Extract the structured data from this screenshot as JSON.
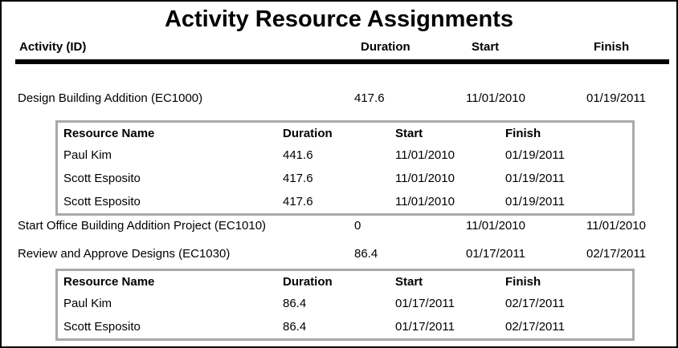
{
  "report": {
    "title": "Activity Resource Assignments",
    "columns": {
      "activity": "Activity (ID)",
      "duration": "Duration",
      "start": "Start",
      "finish": "Finish"
    },
    "resource_columns": {
      "name": "Resource Name",
      "duration": "Duration",
      "start": "Start",
      "finish": "Finish"
    },
    "activities": [
      {
        "name": "Design Building Addition (EC1000)",
        "duration": "417.6",
        "start": "11/01/2010",
        "finish": "01/19/2011",
        "resources": [
          {
            "name": "Paul Kim",
            "duration": "441.6",
            "start": "11/01/2010",
            "finish": "01/19/2011"
          },
          {
            "name": "Scott Esposito",
            "duration": "417.6",
            "start": "11/01/2010",
            "finish": "01/19/2011"
          },
          {
            "name": "Scott Esposito",
            "duration": "417.6",
            "start": "11/01/2010",
            "finish": "01/19/2011"
          }
        ]
      },
      {
        "name": "Start Office Building Addition Project (EC1010)",
        "duration": "0",
        "start": "11/01/2010",
        "finish": "11/01/2010",
        "resources": []
      },
      {
        "name": "Review and Approve Designs (EC1030)",
        "duration": "86.4",
        "start": "01/17/2011",
        "finish": "02/17/2011",
        "resources": [
          {
            "name": "Paul Kim",
            "duration": "86.4",
            "start": "01/17/2011",
            "finish": "02/17/2011"
          },
          {
            "name": "Scott Esposito",
            "duration": "86.4",
            "start": "01/17/2011",
            "finish": "02/17/2011"
          }
        ]
      }
    ],
    "colors": {
      "text": "#000000",
      "frame_border": "#000000",
      "table_border": "#a9a9a9",
      "background": "#ffffff"
    }
  }
}
